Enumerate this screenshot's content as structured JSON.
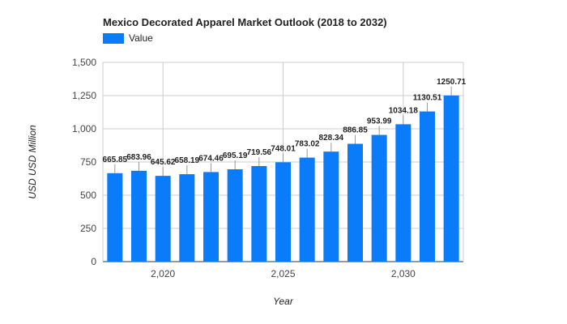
{
  "chart_data": {
    "type": "bar",
    "title": "Mexico Decorated Apparel Market Outlook (2018 to 2032)",
    "xlabel": "Year",
    "ylabel": "USD USD Million",
    "x": [
      2018,
      2019,
      2020,
      2021,
      2022,
      2023,
      2024,
      2025,
      2026,
      2027,
      2028,
      2029,
      2030,
      2031,
      2032
    ],
    "series": [
      {
        "name": "Value",
        "color": "#0a7cf9",
        "values": [
          665.85,
          683.96,
          645.62,
          658.19,
          674.46,
          695.19,
          719.56,
          748.01,
          783.02,
          828.34,
          886.85,
          953.99,
          1034.18,
          1130.51,
          1250.71
        ],
        "labels": [
          "665.85",
          "683.96",
          "645.62",
          "658.19",
          "674.46",
          "695.19",
          "719.56",
          "748.01",
          "783.02",
          "828.34",
          "886.85",
          "953.99",
          "1034.18",
          "1130.51",
          "1250.71"
        ]
      }
    ],
    "ylim": [
      0,
      1500
    ],
    "yticks": [
      0,
      250,
      500,
      750,
      1000,
      1250,
      1500
    ],
    "ytick_labels": [
      "0",
      "250",
      "500",
      "750",
      "1,000",
      "1,250",
      "1,500"
    ],
    "xticks": [
      2020,
      2025,
      2030
    ],
    "xtick_labels": [
      "2,020",
      "2,025",
      "2,030"
    ],
    "grid": true,
    "legend_position": "top-left"
  }
}
